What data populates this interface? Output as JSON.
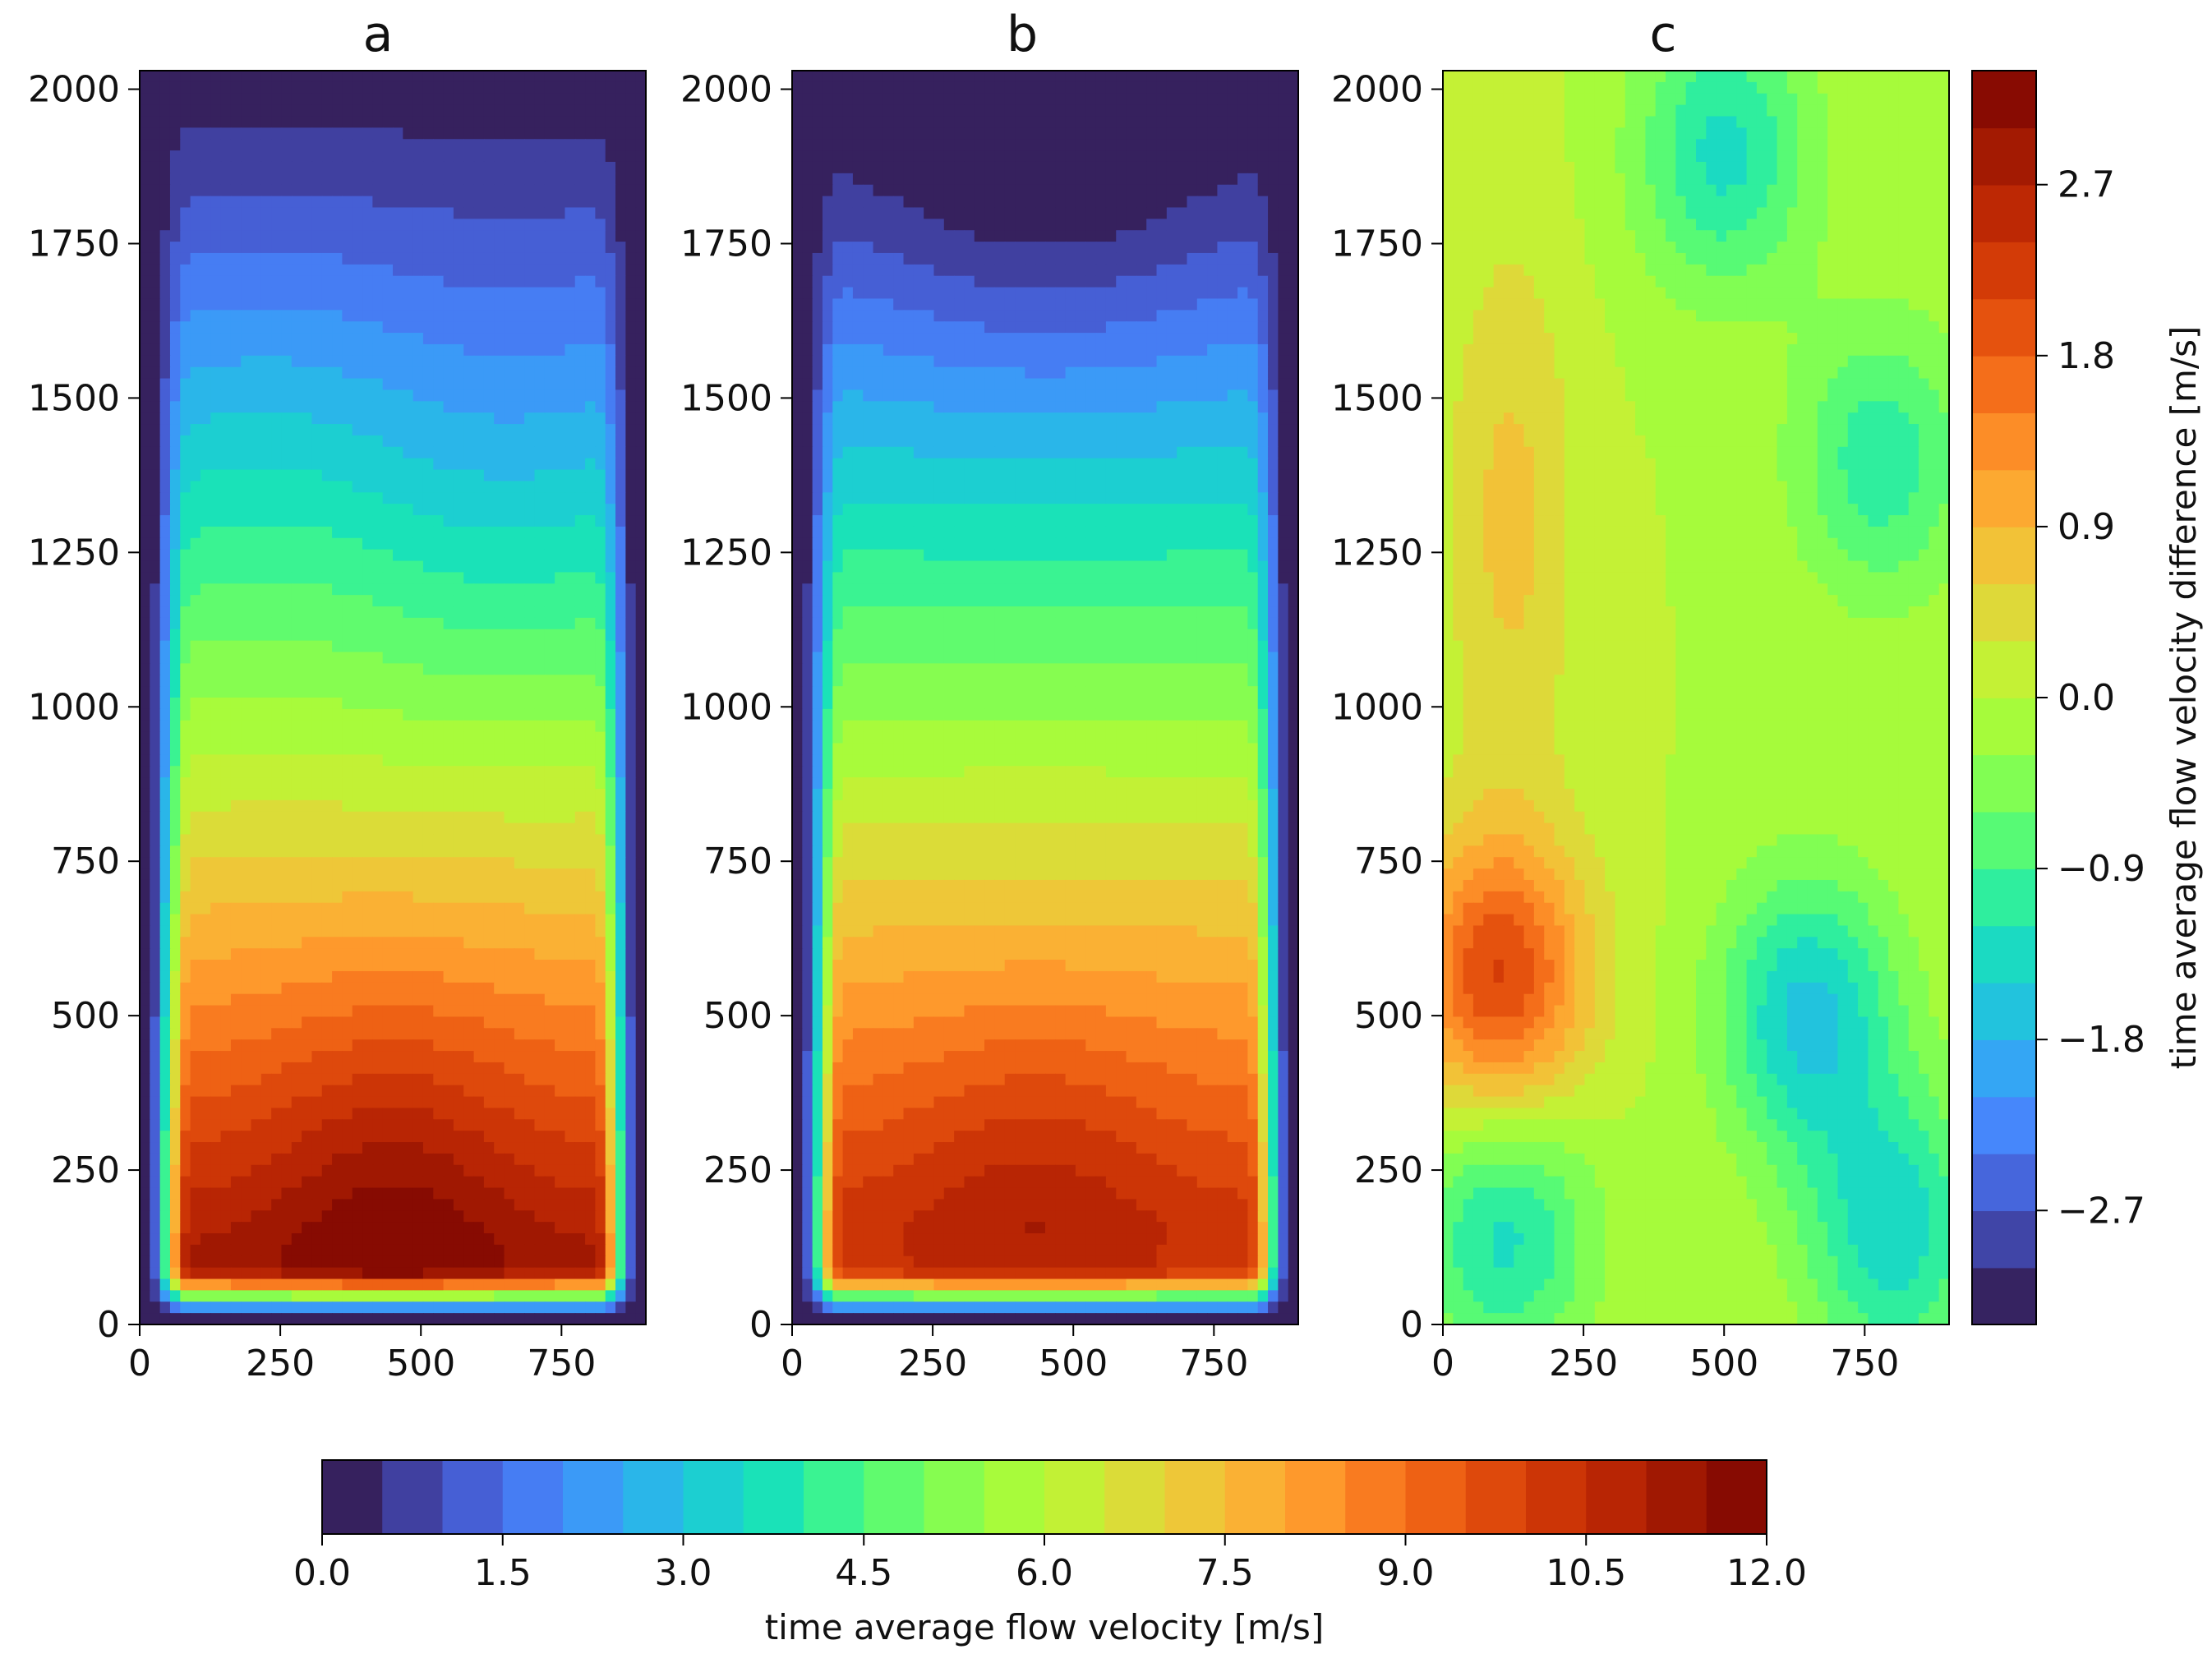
{
  "figure": {
    "palette": [
      "#30123b",
      "#3e3994",
      "#4660d6",
      "#4686fb",
      "#32aaf3",
      "#1ccbd6",
      "#1ae4b6",
      "#46f884",
      "#78fe59",
      "#a4fc3c",
      "#c6f034",
      "#e4d33a",
      "#f9b936",
      "#fe9b2d",
      "#f8761e",
      "#e8550f",
      "#d23a07",
      "#b92504",
      "#9a1501",
      "#7a0403"
    ]
  },
  "chart_data": [
    {
      "panel": "a",
      "type": "heatmap",
      "title": "a",
      "x_ticks": [
        "0",
        "250",
        "500",
        "750"
      ],
      "y_ticks": [
        "0",
        "250",
        "500",
        "750",
        "1000",
        "1250",
        "1500",
        "1750",
        "2000"
      ],
      "xlim": [
        0,
        900
      ],
      "ylim": [
        0,
        2030
      ],
      "colorbar": "velocity",
      "peak": {
        "x": 450,
        "y": 120,
        "value": 11.0
      },
      "top_value": 0.3,
      "bottom_value": 11.0
    },
    {
      "panel": "b",
      "type": "heatmap",
      "title": "b",
      "x_ticks": [
        "0",
        "250",
        "500",
        "750"
      ],
      "y_ticks": [
        "0",
        "250",
        "500",
        "750",
        "1000",
        "1250",
        "1500",
        "1750",
        "2000"
      ],
      "xlim": [
        0,
        900
      ],
      "ylim": [
        0,
        2030
      ],
      "colorbar": "velocity",
      "peak": {
        "x": 430,
        "y": 250,
        "value": 10.4
      },
      "top_value": 0.1,
      "bottom_value": 10.2
    },
    {
      "panel": "c",
      "type": "heatmap",
      "title": "c",
      "x_ticks": [
        "0",
        "250",
        "500",
        "750"
      ],
      "y_ticks": [
        "0",
        "250",
        "500",
        "750",
        "1000",
        "1250",
        "1500",
        "1750",
        "2000"
      ],
      "xlim": [
        0,
        900
      ],
      "ylim": [
        0,
        2030
      ],
      "colorbar": "difference",
      "base_value": 0.0,
      "features": [
        {
          "x": 100,
          "y": 560,
          "value": 2.1
        },
        {
          "x": 120,
          "y": 1300,
          "value": 0.7
        },
        {
          "x": 650,
          "y": 500,
          "value": -1.6
        },
        {
          "x": 800,
          "y": 150,
          "value": -1.4
        },
        {
          "x": 110,
          "y": 150,
          "value": -1.3
        },
        {
          "x": 780,
          "y": 1400,
          "value": -1.1
        },
        {
          "x": 500,
          "y": 1900,
          "value": -1.3
        }
      ]
    },
    {
      "name": "velocity-colorbar",
      "type": "colorbar",
      "orientation": "horizontal",
      "label": "time average flow velocity [m/s]",
      "range": [
        0.0,
        12.0
      ],
      "levels": 24,
      "tick_values": [
        0.0,
        1.5,
        3.0,
        4.5,
        6.0,
        7.5,
        9.0,
        10.5,
        12.0
      ],
      "tick_labels": [
        "0.0",
        "1.5",
        "3.0",
        "4.5",
        "6.0",
        "7.5",
        "9.0",
        "10.5",
        "12.0"
      ]
    },
    {
      "name": "difference-colorbar",
      "type": "colorbar",
      "orientation": "vertical",
      "label": "time average flow velocity difference [m/s]",
      "range": [
        -3.3,
        3.3
      ],
      "levels": 22,
      "tick_values": [
        2.7,
        1.8,
        0.9,
        0.0,
        -0.9,
        -1.8,
        -2.7
      ],
      "tick_labels": [
        "2.7",
        "1.8",
        "0.9",
        "0.0",
        "−0.9",
        "−1.8",
        "−2.7"
      ]
    }
  ]
}
